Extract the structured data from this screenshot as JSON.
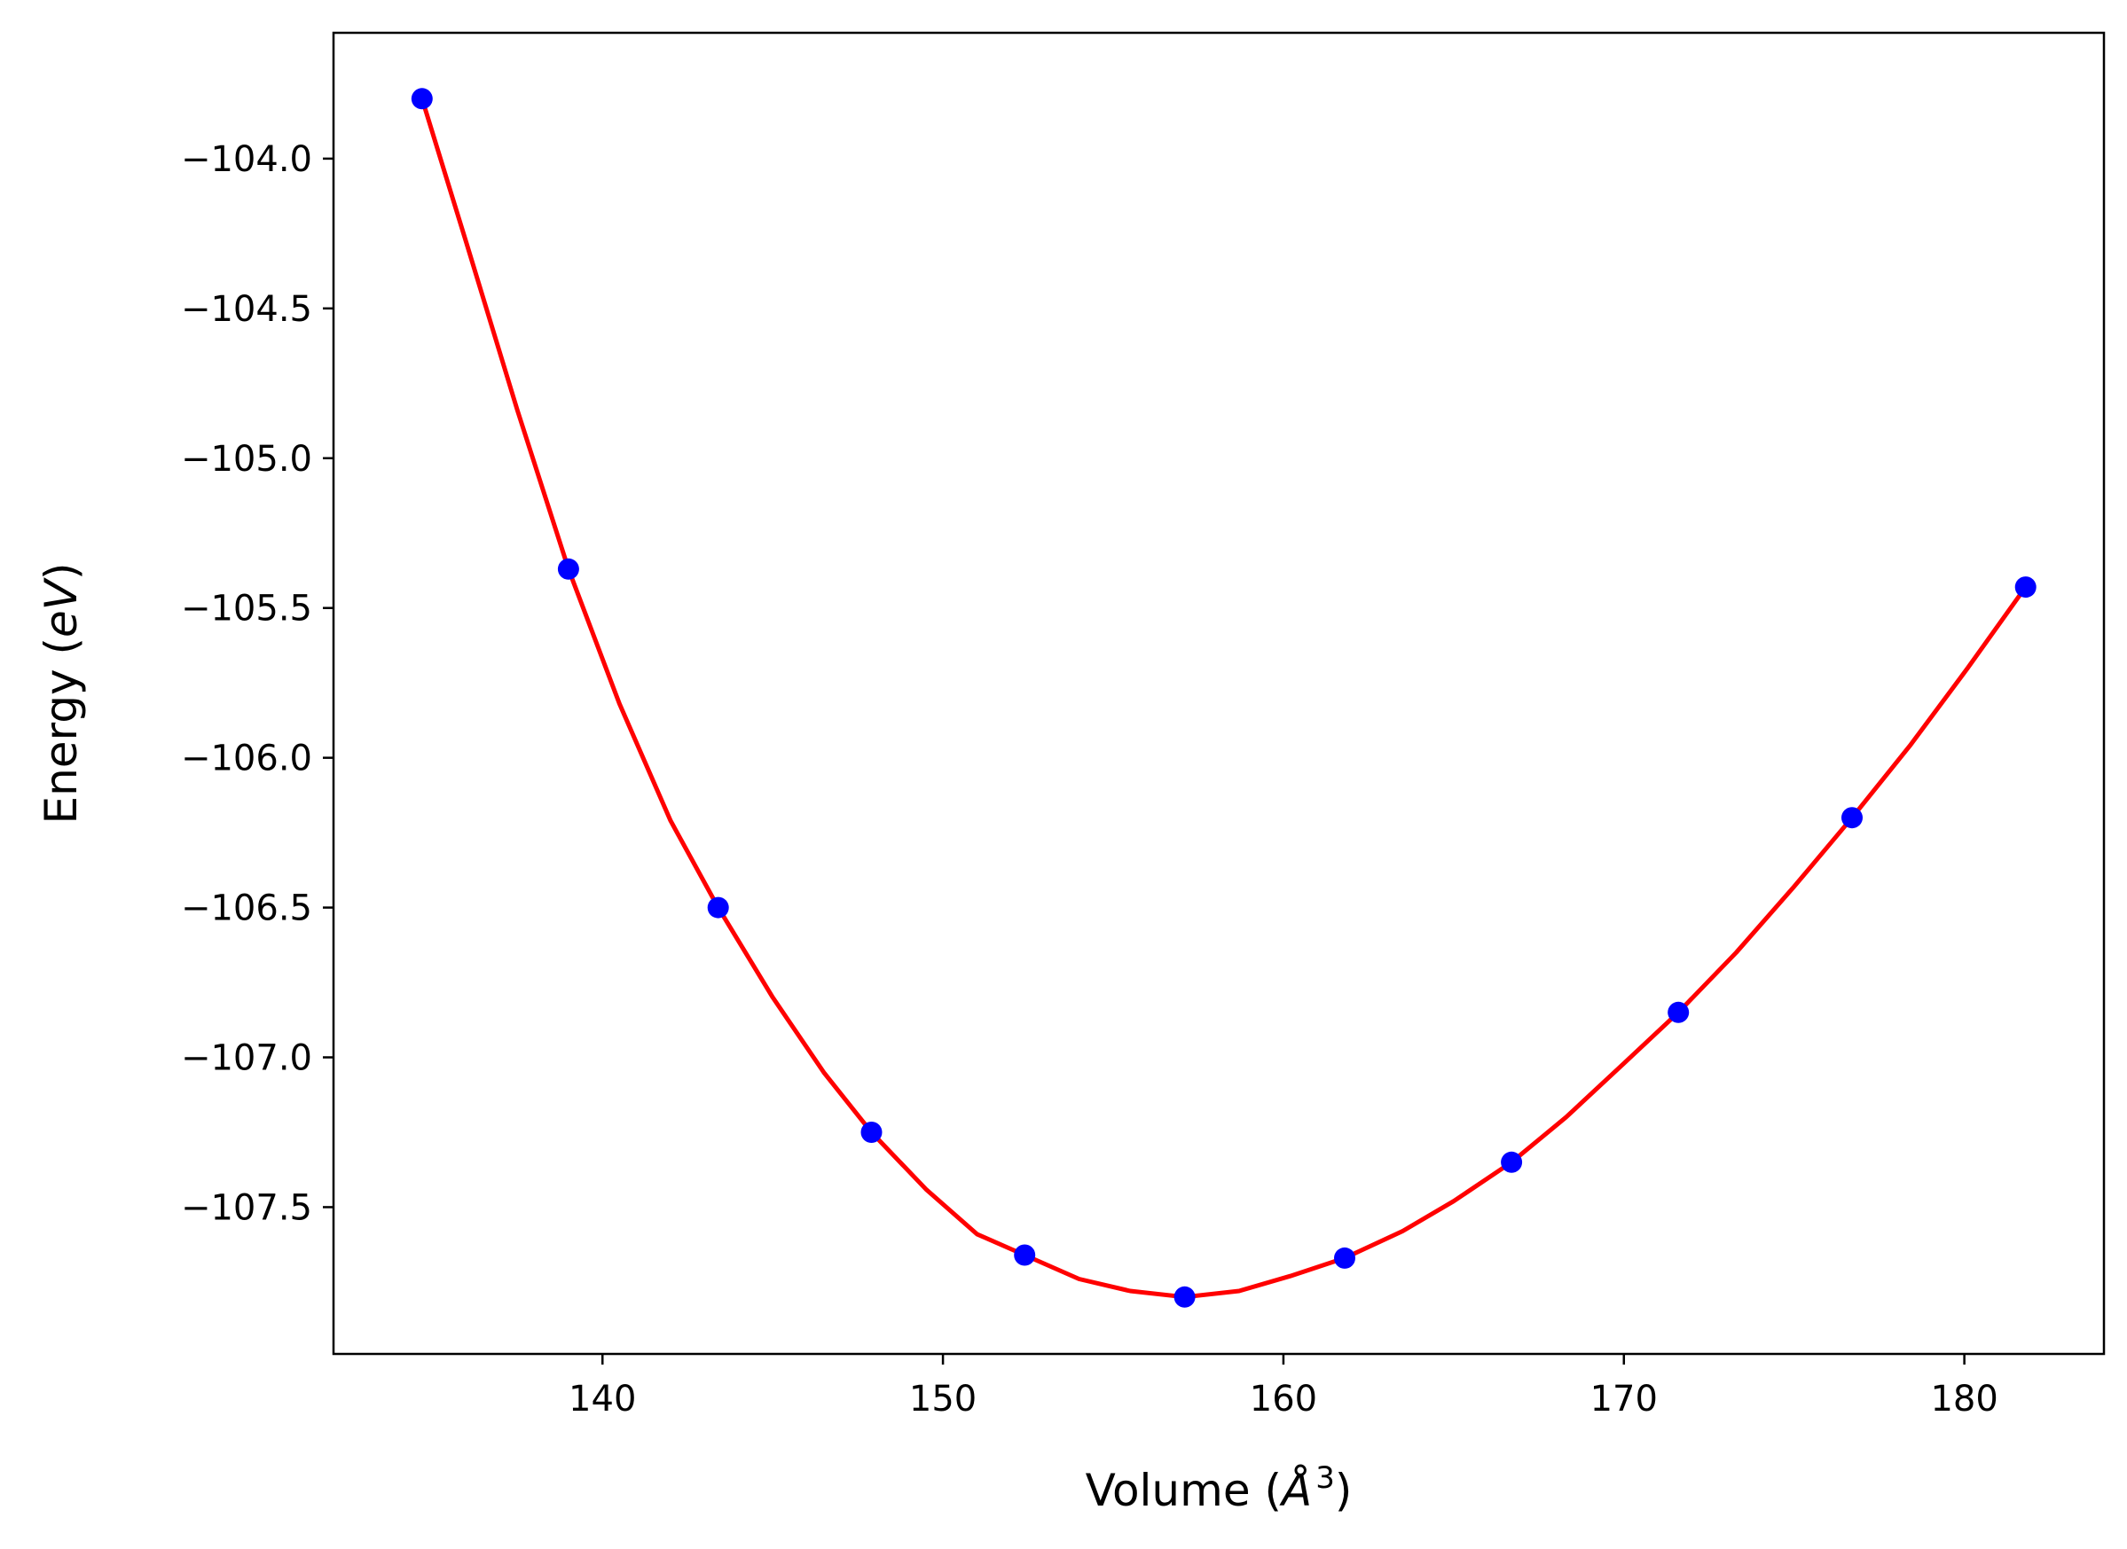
{
  "chart_data": {
    "type": "line",
    "title": "",
    "xlabel": {
      "prefix": "Volume (",
      "symbol": "Å",
      "sup": "3",
      "suffix": ")"
    },
    "ylabel": {
      "prefix": "Energy (",
      "unit": "eV",
      "suffix": ")"
    },
    "xlim": [
      132.1,
      184.1
    ],
    "ylim": [
      -107.99,
      -103.58
    ],
    "xticks": [
      140,
      150,
      160,
      170,
      180
    ],
    "xtick_labels": [
      "140",
      "150",
      "160",
      "170",
      "180"
    ],
    "yticks": [
      -104.0,
      -104.5,
      -105.0,
      -105.5,
      -106.0,
      -106.5,
      -107.0,
      -107.5
    ],
    "ytick_labels": [
      "−104.0",
      "−104.5",
      "−105.0",
      "−105.5",
      "−106.0",
      "−106.5",
      "−107.0",
      "−107.5"
    ],
    "grid": false,
    "legend": "none",
    "series": [
      {
        "kind": "line",
        "color": "#ff0000",
        "x": [
          134.7,
          136.0,
          137.5,
          139.0,
          140.5,
          142.0,
          143.4,
          145.0,
          146.5,
          147.9,
          149.5,
          151.0,
          152.4,
          154.0,
          155.5,
          157.1,
          158.7,
          160.2,
          161.8,
          163.5,
          165.0,
          166.7,
          168.3,
          170.0,
          171.6,
          173.3,
          175.0,
          176.7,
          178.4,
          180.1,
          181.8
        ],
        "y": [
          -103.8,
          -104.28,
          -104.84,
          -105.37,
          -105.82,
          -106.21,
          -106.5,
          -106.8,
          -107.05,
          -107.25,
          -107.44,
          -107.59,
          -107.66,
          -107.74,
          -107.78,
          -107.8,
          -107.78,
          -107.73,
          -107.67,
          -107.58,
          -107.48,
          -107.35,
          -107.2,
          -107.02,
          -106.85,
          -106.65,
          -106.43,
          -106.2,
          -105.96,
          -105.7,
          -105.43
        ]
      },
      {
        "kind": "scatter",
        "color": "#0000ff",
        "x": [
          134.7,
          139.0,
          143.4,
          147.9,
          152.4,
          157.1,
          161.8,
          166.7,
          171.6,
          176.7,
          181.8
        ],
        "y": [
          -103.8,
          -105.37,
          -106.5,
          -107.25,
          -107.66,
          -107.8,
          -107.67,
          -107.35,
          -106.85,
          -106.2,
          -105.43
        ]
      }
    ]
  }
}
